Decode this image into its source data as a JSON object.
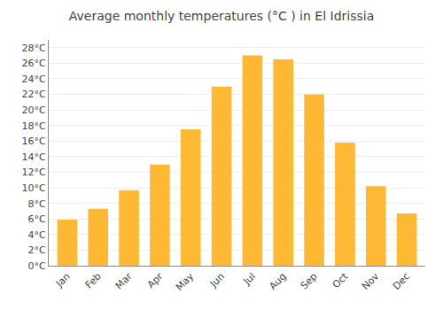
{
  "chart_data": {
    "type": "bar",
    "title": "Average monthly temperatures (°C ) in El Idrissia",
    "categories": [
      "Jan",
      "Feb",
      "Mar",
      "Apr",
      "May",
      "Jun",
      "Jul",
      "Aug",
      "Sep",
      "Oct",
      "Nov",
      "Dec"
    ],
    "values": [
      5.9,
      7.3,
      9.7,
      13.0,
      17.5,
      23.0,
      27.0,
      26.5,
      22.0,
      15.8,
      10.2,
      6.7
    ],
    "color": "#FFB833",
    "ylim": [
      0,
      29
    ],
    "yticks": [
      {
        "value": 0,
        "label": "0°C"
      },
      {
        "value": 2,
        "label": "2°C"
      },
      {
        "value": 4,
        "label": "4°C"
      },
      {
        "value": 6,
        "label": "6°C"
      },
      {
        "value": 8,
        "label": "8°C"
      },
      {
        "value": 10,
        "label": "10°C"
      },
      {
        "value": 12,
        "label": "12°C"
      },
      {
        "value": 14,
        "label": "14°C"
      },
      {
        "value": 16,
        "label": "16°C"
      },
      {
        "value": 18,
        "label": "18°C"
      },
      {
        "value": 20,
        "label": "20°C"
      },
      {
        "value": 22,
        "label": "22°C"
      },
      {
        "value": 24,
        "label": "24°C"
      },
      {
        "value": 26,
        "label": "26°C"
      },
      {
        "value": 28,
        "label": "28°C"
      }
    ],
    "grid": true
  }
}
